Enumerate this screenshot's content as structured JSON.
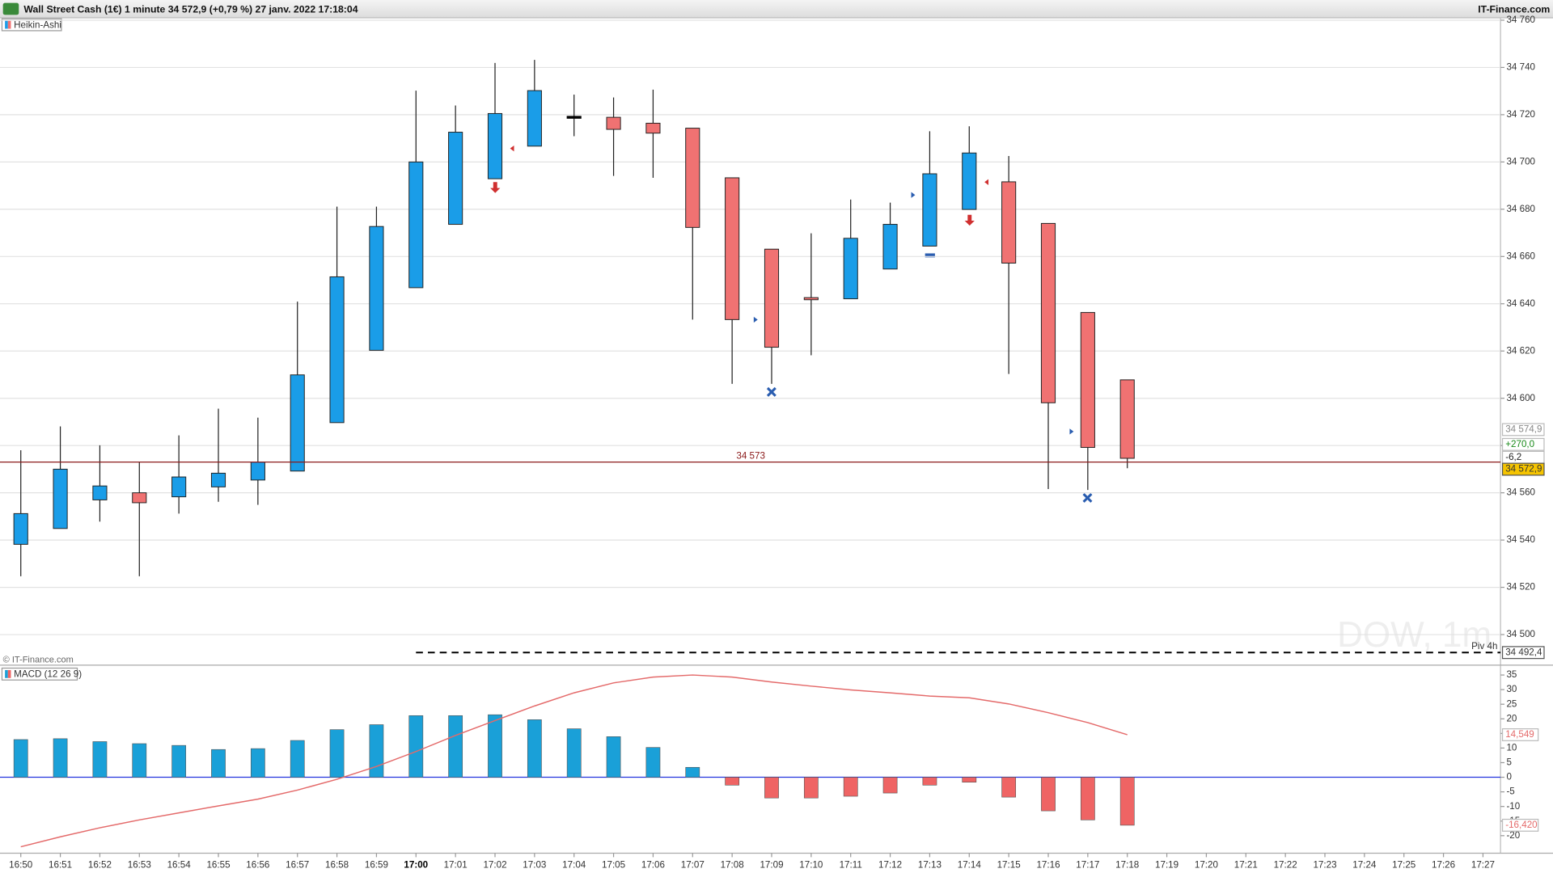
{
  "chart_data": [
    {
      "type": "candlestick",
      "title": "Wall Street Cash (1€) 1 minute 34 572,9 (+0,79 %) 27 janv. 2022 17:18:04",
      "source": "IT-Finance.com",
      "legend": "Heikin-Ashi",
      "watermark": "DOW, 1m",
      "copyright": "© IT-Finance.com",
      "categories": [
        "16:50",
        "16:51",
        "16:52",
        "16:53",
        "16:54",
        "16:55",
        "16:56",
        "16:57",
        "16:58",
        "16:59",
        "17:00",
        "17:01",
        "17:02",
        "17:03",
        "17:04",
        "17:05",
        "17:06",
        "17:07",
        "17:08",
        "17:09",
        "17:10",
        "17:11",
        "17:12",
        "17:13",
        "17:14",
        "17:15",
        "17:16",
        "17:17",
        "17:18",
        "17:19",
        "17:20",
        "17:21",
        "17:22",
        "17:23",
        "17:24",
        "17:25",
        "17:26",
        "17:27"
      ],
      "bold_category_index": 10,
      "open": [
        34538.2,
        34544.9,
        34557.0,
        34560.0,
        34558.3,
        34562.5,
        34565.4,
        34569.2,
        34589.7,
        34620.3,
        34646.8,
        34673.6,
        34692.9,
        34706.7,
        34718.9,
        34718.9,
        34716.4,
        34714.3,
        34693.3,
        34663.1,
        34642.6,
        34642.1,
        34654.7,
        34664.4,
        34679.9,
        34691.6,
        34674.0,
        34636.3,
        34607.8,
        null,
        null,
        null,
        null,
        null,
        null,
        null,
        null,
        null
      ],
      "high": [
        34578.0,
        34588.1,
        34580.1,
        34573.0,
        34584.3,
        34595.6,
        34591.8,
        34640.9,
        34681.1,
        34681.1,
        34730.2,
        34723.9,
        34741.9,
        34743.2,
        34728.5,
        34727.3,
        34730.6,
        34714.3,
        34693.3,
        34663.1,
        34669.8,
        34684.1,
        34682.8,
        34713.0,
        34715.1,
        34702.5,
        34674.0,
        34636.3,
        34607.8,
        null,
        null,
        null,
        null,
        null,
        null,
        null,
        null,
        null
      ],
      "low": [
        34524.7,
        34544.9,
        34547.8,
        34524.7,
        34551.2,
        34556.2,
        34554.9,
        34569.2,
        34589.7,
        34620.3,
        34646.8,
        34673.6,
        34692.9,
        34706.7,
        34710.9,
        34694.1,
        34693.3,
        34633.3,
        34606.1,
        34606.1,
        34618.2,
        34642.1,
        34654.7,
        34664.4,
        34679.9,
        34610.3,
        34561.6,
        34561.2,
        34570.4,
        null,
        null,
        null,
        null,
        null,
        null,
        null,
        null,
        null
      ],
      "close": [
        34551.2,
        34570.0,
        34562.9,
        34555.8,
        34566.7,
        34568.3,
        34573.0,
        34609.9,
        34651.4,
        34672.7,
        34700.0,
        34712.6,
        34720.5,
        34730.2,
        34718.9,
        34713.8,
        34712.2,
        34672.3,
        34633.3,
        34621.6,
        34641.7,
        34667.7,
        34673.6,
        34695.0,
        34703.8,
        34657.2,
        34598.1,
        34579.2,
        34574.6,
        null,
        null,
        null,
        null,
        null,
        null,
        null,
        null,
        null
      ],
      "up_color": "#1a9de8",
      "down_color": "#f07272",
      "doji_color": "#000000",
      "grid": true,
      "ylim": [
        34490,
        34761
      ],
      "yticks": [
        {
          "value": 34500,
          "label": "34 500"
        },
        {
          "value": 34520,
          "label": "34 520"
        },
        {
          "value": 34540,
          "label": "34 540"
        },
        {
          "value": 34560,
          "label": "34 560"
        },
        {
          "value": 34580,
          "label": "34 580"
        },
        {
          "value": 34600,
          "label": "34 600"
        },
        {
          "value": 34620,
          "label": "34 620"
        },
        {
          "value": 34640,
          "label": "34 640"
        },
        {
          "value": 34660,
          "label": "34 660"
        },
        {
          "value": 34680,
          "label": "34 680"
        },
        {
          "value": 34700,
          "label": "34 700"
        },
        {
          "value": 34720,
          "label": "34 720"
        },
        {
          "value": 34740,
          "label": "34 740"
        },
        {
          "value": 34760,
          "label": "34 760"
        }
      ],
      "level_line": {
        "value": 34573,
        "label": "34 573",
        "color": "#8b1a1a"
      },
      "pivot": {
        "name": "Piv 4h",
        "value": 34492.4,
        "label": "34 492,4"
      },
      "current_price": {
        "value": 34572.9,
        "label": "34 572,9",
        "color": "#f5c400"
      },
      "tags": [
        "34 574,9",
        "+270,0",
        "-6,2"
      ]
    },
    {
      "type": "macd",
      "title": "MACD (12 26 9)",
      "histogram": {
        "values": [
          12.9,
          13.2,
          12.2,
          11.5,
          10.9,
          9.5,
          9.8,
          12.6,
          16.3,
          18.0,
          21.1,
          21.1,
          21.4,
          19.7,
          16.6,
          13.9,
          10.2,
          3.4,
          -2.7,
          -7.1,
          -7.1,
          -6.5,
          -5.4,
          -2.7,
          -1.7,
          -6.8,
          -11.5,
          -14.6,
          -16.42,
          null,
          null,
          null,
          null,
          null,
          null,
          null,
          null,
          null
        ],
        "positive_color": "#1aa0d8",
        "negative_color": "#ef6464"
      },
      "signal": {
        "values": [
          -23.8,
          -20.4,
          -17.3,
          -14.6,
          -12.2,
          -9.8,
          -7.5,
          -4.4,
          -0.7,
          3.7,
          8.8,
          14.3,
          19.4,
          24.4,
          28.9,
          32.3,
          34.3,
          35.0,
          34.3,
          32.6,
          31.2,
          29.9,
          28.9,
          27.8,
          27.2,
          25.1,
          22.1,
          18.7,
          14.549,
          null,
          null,
          null,
          null,
          null,
          null,
          null,
          null,
          null
        ],
        "color": "#e46a6a"
      },
      "zero_color": "#2233dd",
      "ylim": [
        -26,
        37.7
      ],
      "yticks": [
        35,
        30,
        25,
        20,
        15,
        10,
        5,
        0,
        -5,
        -10,
        -15,
        -20
      ],
      "value_tags": [
        {
          "value": 14.549,
          "label": "14,549",
          "color": "#e46a6a"
        },
        {
          "value": -16.42,
          "label": "-16,420",
          "color": "#e46a6a"
        }
      ]
    }
  ]
}
